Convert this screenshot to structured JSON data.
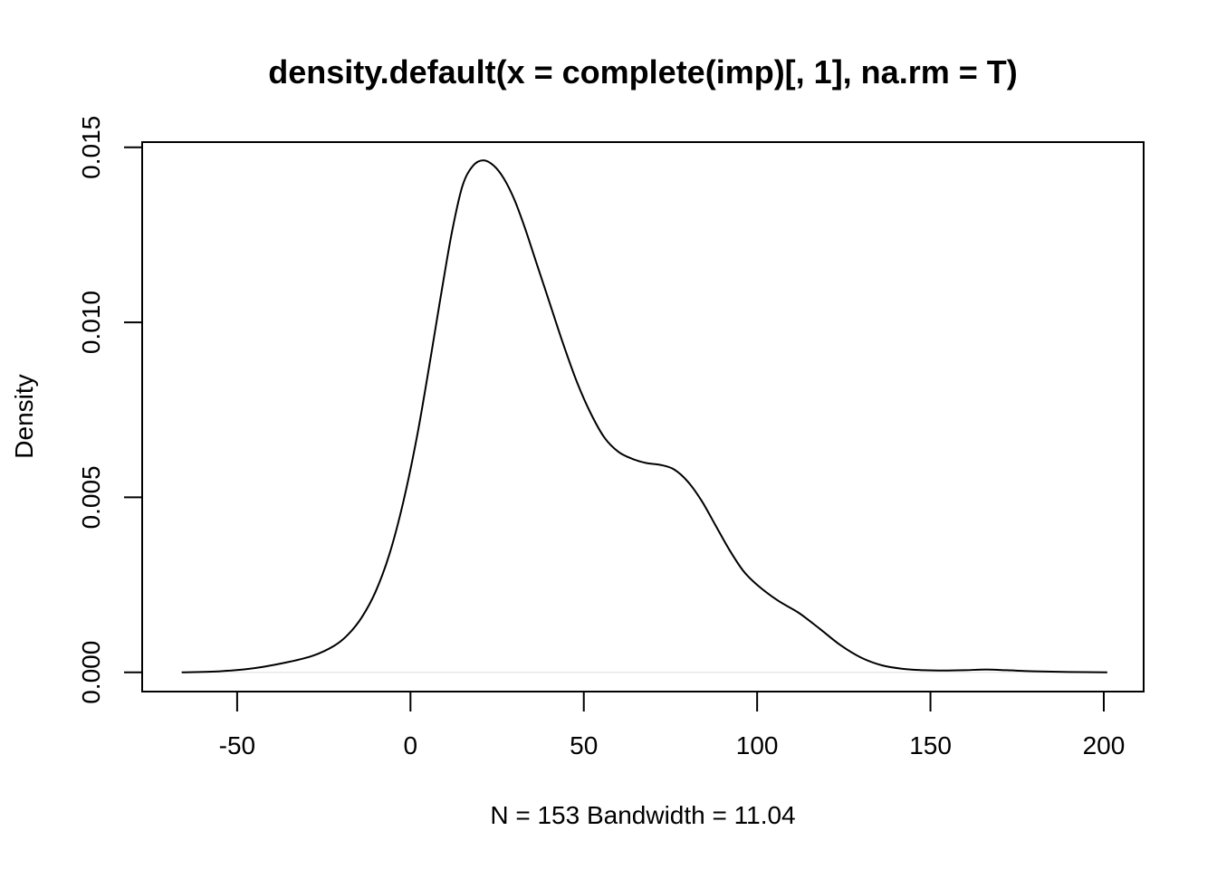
{
  "chart_data": {
    "type": "line",
    "title": "density.default(x = complete(imp)[, 1], na.rm = T)",
    "xlabel": "N = 153   Bandwidth = 11.04",
    "ylabel": "Density",
    "xlim": [
      -77.4,
      211.5
    ],
    "ylim": [
      -0.00055,
      0.01515
    ],
    "x_ticks": [
      -50,
      0,
      50,
      100,
      150,
      200
    ],
    "x_tick_labels": [
      "-50",
      "0",
      "50",
      "100",
      "150",
      "200"
    ],
    "y_ticks": [
      0.0,
      0.005,
      0.01,
      0.015
    ],
    "y_tick_labels": [
      "0.000",
      "0.005",
      "0.010",
      "0.015"
    ],
    "grid": false,
    "baseline": 0,
    "series": [
      {
        "x": [
          -66,
          -55,
          -45,
          -35,
          -28,
          -22,
          -18,
          -14,
          -10,
          -6,
          -2,
          2,
          6,
          9,
          12,
          15,
          18,
          21,
          24,
          27,
          30,
          33,
          36,
          40,
          44,
          48,
          52,
          56,
          60,
          64,
          68,
          72,
          76,
          80,
          84,
          88,
          92,
          96,
          100,
          106,
          112,
          118,
          124,
          130,
          136,
          142,
          148,
          154,
          160,
          166,
          172,
          180,
          190,
          201
        ],
        "y": [
          0.0,
          3e-05,
          0.00012,
          0.0003,
          0.00048,
          0.00076,
          0.00108,
          0.00158,
          0.00232,
          0.0034,
          0.0049,
          0.0068,
          0.0091,
          0.0109,
          0.0126,
          0.0139,
          0.01447,
          0.01463,
          0.01448,
          0.0141,
          0.0135,
          0.0127,
          0.0118,
          0.0106,
          0.0094,
          0.0083,
          0.0074,
          0.0067,
          0.0063,
          0.0061,
          0.00598,
          0.00593,
          0.0058,
          0.00545,
          0.0049,
          0.0042,
          0.0035,
          0.0029,
          0.0025,
          0.00205,
          0.0017,
          0.00125,
          0.00078,
          0.00042,
          0.0002,
          0.0001,
          6e-05,
          5e-05,
          6e-05,
          8e-05,
          6e-05,
          3e-05,
          1e-05,
          0.0
        ]
      }
    ]
  }
}
